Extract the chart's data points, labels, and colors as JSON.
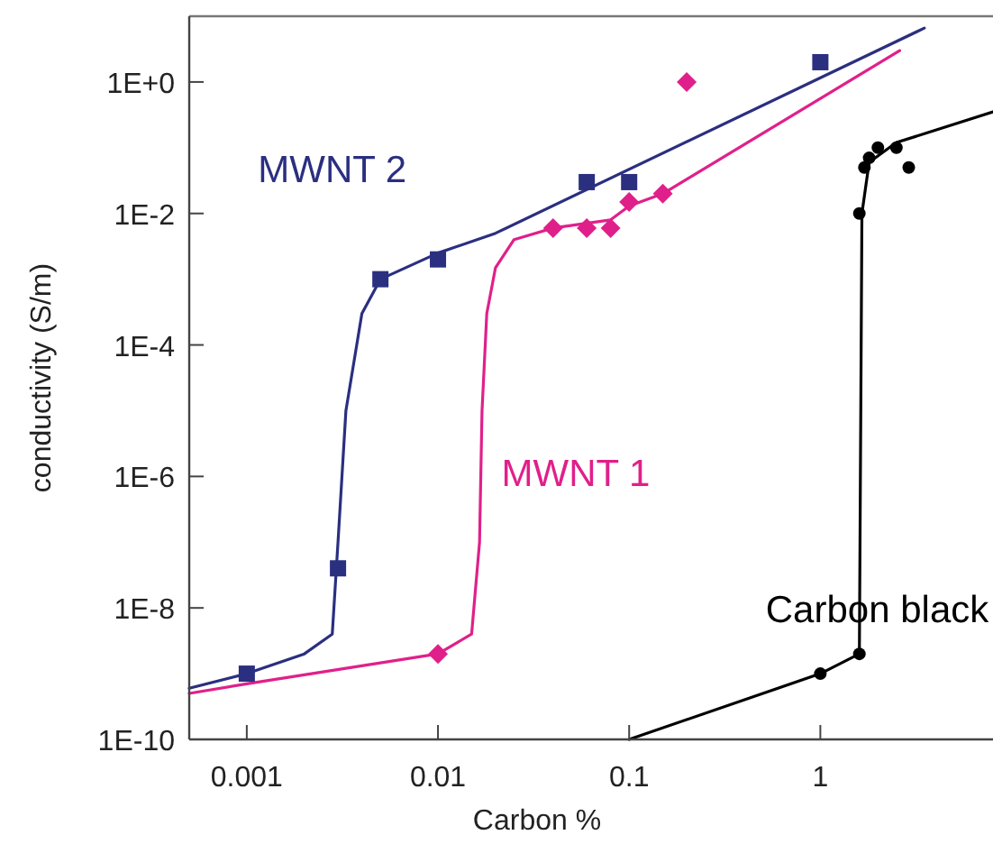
{
  "chart_data": {
    "type": "scatter",
    "xlabel": "Carbon %",
    "ylabel": "conductivity (S/m)",
    "log": "xy",
    "grid": false,
    "xlim": [
      0.0005,
      8
    ],
    "xticks": [
      0.001,
      0.01,
      0.1,
      1
    ],
    "ylim": [
      1e-10,
      10
    ],
    "yticks": [
      {
        "value": 1e-10,
        "label": "1E-10"
      },
      {
        "value": 1e-08,
        "label": "1E-8"
      },
      {
        "value": 1e-06,
        "label": "1E-6"
      },
      {
        "value": 0.0001,
        "label": "1E-4"
      },
      {
        "value": 0.01,
        "label": "1E-2"
      },
      {
        "value": 1,
        "label": "1E+0"
      }
    ],
    "series": [
      {
        "name": "MWNT 2",
        "marker": "square",
        "color": "#2b2f80",
        "x": [
          0.001,
          0.003,
          0.005,
          0.01,
          0.06,
          0.1,
          1
        ],
        "values": [
          1e-09,
          4e-08,
          0.001,
          0.002,
          0.03,
          0.03,
          2
        ]
      },
      {
        "name": "MWNT 1",
        "marker": "diamond",
        "color": "#e0208a",
        "x": [
          0.01,
          0.04,
          0.06,
          0.08,
          0.1,
          0.15,
          0.2
        ],
        "values": [
          2e-09,
          0.006,
          0.006,
          0.006,
          0.015,
          0.02,
          1
        ]
      },
      {
        "name": "Carbon black",
        "marker": "circle",
        "color": "#000000",
        "x": [
          1,
          1.6,
          1.6,
          1.7,
          1.8,
          2,
          2.5,
          2.9
        ],
        "values": [
          1e-09,
          2e-09,
          0.01,
          0.05,
          0.07,
          0.1,
          0.1,
          0.05
        ]
      },
      {
        "type": "line",
        "line_style": "solid",
        "color": "#2b2f80",
        "x": [
          0.0005,
          0.001,
          0.002,
          0.0028,
          0.003,
          0.0033,
          0.004,
          0.005,
          0.01,
          0.02,
          3.5
        ],
        "values": [
          6e-10,
          1e-09,
          2e-09,
          4e-09,
          1e-07,
          1e-05,
          0.0003,
          0.001,
          0.0025,
          0.005,
          6.6
        ]
      },
      {
        "type": "line",
        "line_style": "solid",
        "color": "#e0208a",
        "x": [
          0.0005,
          0.001,
          0.01,
          0.015,
          0.0165,
          0.017,
          0.018,
          0.02,
          0.025,
          0.04,
          0.08,
          0.1,
          0.15,
          2.6
        ],
        "values": [
          5e-10,
          7e-10,
          2e-09,
          4e-09,
          1e-07,
          1e-05,
          0.0003,
          0.0015,
          0.004,
          0.006,
          0.008,
          0.013,
          0.02,
          3
        ]
      },
      {
        "type": "line",
        "line_style": "solid",
        "color": "#000000",
        "x": [
          0.1,
          1,
          1.6,
          1.62,
          1.65,
          1.8,
          2.5,
          8
        ],
        "values": [
          1e-10,
          1e-09,
          2e-09,
          1e-06,
          0.01,
          0.06,
          0.12,
          0.35
        ]
      }
    ]
  }
}
